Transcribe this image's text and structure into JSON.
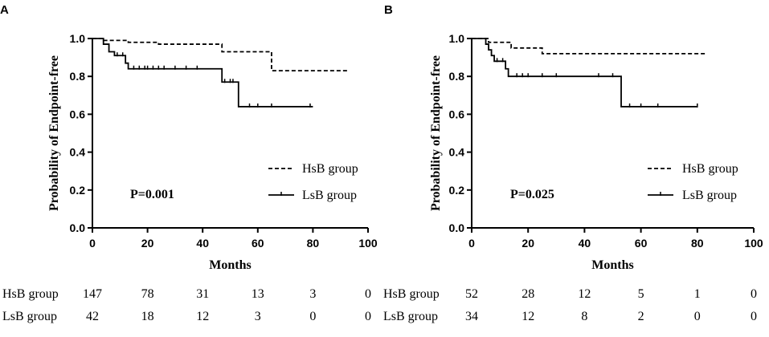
{
  "chart_data": [
    {
      "type": "line",
      "panel": "A",
      "title": "",
      "xlabel": "Months",
      "ylabel": "Probability of Endpoint-free",
      "xlim": [
        0,
        100
      ],
      "ylim": [
        0,
        1.0
      ],
      "x_ticks": [
        "0",
        "20",
        "40",
        "60",
        "80",
        "100"
      ],
      "y_ticks": [
        "0.0",
        "0.2",
        "0.4",
        "0.6",
        "0.8",
        "1.0"
      ],
      "p_value": "P=0.001",
      "legend_position": "right",
      "series": [
        {
          "name": "HsB group",
          "style": "dashed",
          "steps": [
            [
              0,
              1.0
            ],
            [
              4,
              0.99
            ],
            [
              13,
              0.98
            ],
            [
              24,
              0.97
            ],
            [
              47,
              0.93
            ],
            [
              65,
              0.83
            ],
            [
              93,
              0.83
            ]
          ],
          "censored": []
        },
        {
          "name": "LsB group",
          "style": "solid",
          "steps": [
            [
              0,
              1.0
            ],
            [
              4,
              0.97
            ],
            [
              6,
              0.93
            ],
            [
              8,
              0.91
            ],
            [
              12,
              0.87
            ],
            [
              13,
              0.84
            ],
            [
              47,
              0.77
            ],
            [
              53,
              0.64
            ],
            [
              80,
              0.64
            ]
          ],
          "censored": [
            [
              9,
              0.91
            ],
            [
              11,
              0.91
            ],
            [
              15,
              0.84
            ],
            [
              17,
              0.84
            ],
            [
              19,
              0.84
            ],
            [
              20,
              0.84
            ],
            [
              22,
              0.84
            ],
            [
              24,
              0.84
            ],
            [
              26,
              0.84
            ],
            [
              30,
              0.84
            ],
            [
              34,
              0.84
            ],
            [
              38,
              0.84
            ],
            [
              48,
              0.77
            ],
            [
              50,
              0.77
            ],
            [
              51,
              0.77
            ],
            [
              57,
              0.64
            ],
            [
              60,
              0.64
            ],
            [
              65,
              0.64
            ],
            [
              79,
              0.64
            ]
          ]
        }
      ],
      "risk_table": {
        "times": [
          0,
          20,
          40,
          60,
          80,
          100
        ],
        "rows": [
          {
            "label": "HsB group",
            "values": [
              "147",
              "78",
              "31",
              "13",
              "3",
              "0"
            ]
          },
          {
            "label": "LsB group",
            "values": [
              "42",
              "18",
              "12",
              "3",
              "0",
              "0"
            ]
          }
        ]
      }
    },
    {
      "type": "line",
      "panel": "B",
      "title": "",
      "xlabel": "Months",
      "ylabel": "Probability of Endpoint-free",
      "xlim": [
        0,
        100
      ],
      "ylim": [
        0,
        1.0
      ],
      "x_ticks": [
        "0",
        "20",
        "40",
        "60",
        "80",
        "100"
      ],
      "y_ticks": [
        "0.0",
        "0.2",
        "0.4",
        "0.6",
        "0.8",
        "1.0"
      ],
      "p_value": "P=0.025",
      "legend_position": "right",
      "series": [
        {
          "name": "HsB group",
          "style": "dashed",
          "steps": [
            [
              0,
              1.0
            ],
            [
              6,
              0.98
            ],
            [
              14,
              0.95
            ],
            [
              25,
              0.92
            ],
            [
              83,
              0.92
            ]
          ],
          "censored": []
        },
        {
          "name": "LsB group",
          "style": "solid",
          "steps": [
            [
              0,
              1.0
            ],
            [
              5,
              0.97
            ],
            [
              6,
              0.94
            ],
            [
              7,
              0.91
            ],
            [
              8,
              0.88
            ],
            [
              12,
              0.84
            ],
            [
              13,
              0.8
            ],
            [
              53,
              0.64
            ],
            [
              80,
              0.64
            ]
          ],
          "censored": [
            [
              9,
              0.88
            ],
            [
              11,
              0.88
            ],
            [
              16,
              0.8
            ],
            [
              18,
              0.8
            ],
            [
              20,
              0.8
            ],
            [
              25,
              0.8
            ],
            [
              30,
              0.8
            ],
            [
              45,
              0.8
            ],
            [
              50,
              0.8
            ],
            [
              56,
              0.64
            ],
            [
              60,
              0.64
            ],
            [
              66,
              0.64
            ],
            [
              80,
              0.64
            ]
          ]
        }
      ],
      "risk_table": {
        "times": [
          0,
          20,
          40,
          60,
          80,
          100
        ],
        "rows": [
          {
            "label": "HsB group",
            "values": [
              "52",
              "28",
              "12",
              "5",
              "1",
              "0"
            ]
          },
          {
            "label": "LsB group",
            "values": [
              "34",
              "12",
              "8",
              "2",
              "0",
              "0"
            ]
          }
        ]
      }
    }
  ]
}
